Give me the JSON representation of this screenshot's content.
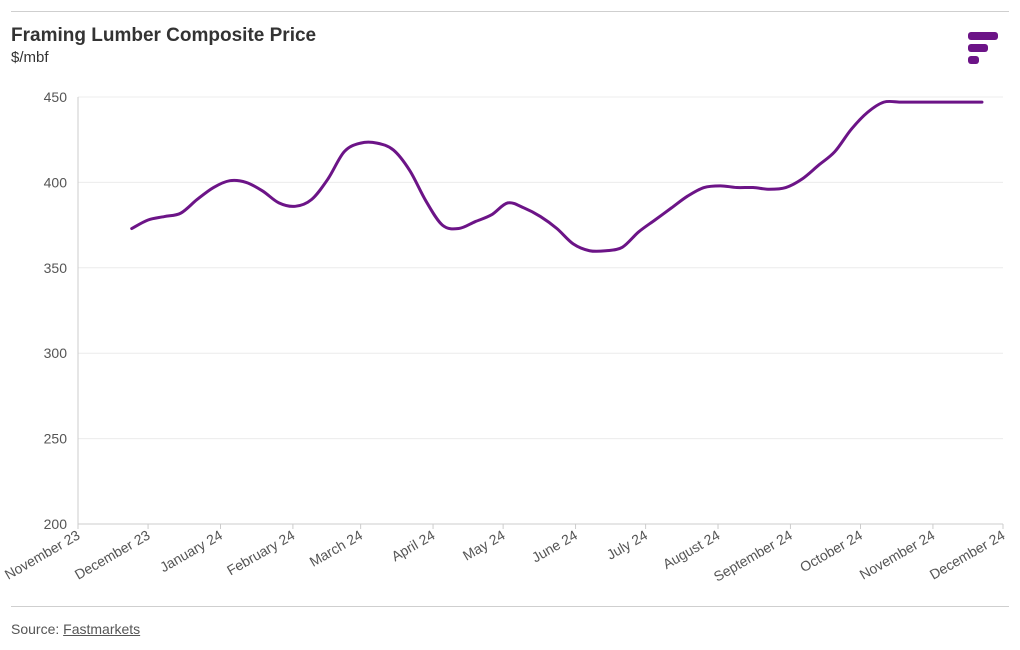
{
  "header": {
    "title": "Framing Lumber Composite Price",
    "subtitle": "$/mbf"
  },
  "logo": {
    "icon": "fastmarkets-logo-icon",
    "color": "#6c1487"
  },
  "footer": {
    "source_label": "Source: ",
    "source_link": "Fastmarkets"
  },
  "chart_data": {
    "type": "line",
    "title": "Framing Lumber Composite Price",
    "ylabel": "$/mbf",
    "xlabel": "",
    "ylim": [
      200,
      450
    ],
    "yticks": [
      200,
      250,
      300,
      350,
      400,
      450
    ],
    "xticks": [
      "November 23",
      "December 23",
      "January 24",
      "February 24",
      "March 24",
      "April 24",
      "May 24",
      "June 24",
      "July 24",
      "August 24",
      "September 24",
      "October 24",
      "November 24",
      "December 24"
    ],
    "xlim": [
      "2023-11-01",
      "2024-12-01"
    ],
    "grid": true,
    "line_color": "#6c1487",
    "series": [
      {
        "x": [
          "2023-11-24",
          "2023-12-01",
          "2023-12-08",
          "2023-12-15",
          "2023-12-22",
          "2023-12-29",
          "2024-01-05",
          "2024-01-12",
          "2024-01-19",
          "2024-01-26",
          "2024-02-02",
          "2024-02-09",
          "2024-02-16",
          "2024-02-23",
          "2024-03-01",
          "2024-03-08",
          "2024-03-15",
          "2024-03-22",
          "2024-03-29",
          "2024-04-05",
          "2024-04-12",
          "2024-04-19",
          "2024-04-26",
          "2024-05-03",
          "2024-05-10",
          "2024-05-17",
          "2024-05-24",
          "2024-05-31",
          "2024-06-07",
          "2024-06-14",
          "2024-06-21",
          "2024-06-28",
          "2024-07-05",
          "2024-07-12",
          "2024-07-19",
          "2024-07-26",
          "2024-08-02",
          "2024-08-09",
          "2024-08-16",
          "2024-08-23",
          "2024-08-30",
          "2024-09-06",
          "2024-09-13",
          "2024-09-20",
          "2024-09-27",
          "2024-10-04",
          "2024-10-11",
          "2024-10-18",
          "2024-10-25",
          "2024-11-01",
          "2024-11-08",
          "2024-11-15",
          "2024-11-22"
        ],
        "values": [
          373,
          378,
          380,
          382,
          390,
          397,
          401,
          400,
          395,
          388,
          386,
          390,
          402,
          418,
          423,
          423,
          419,
          407,
          389,
          375,
          373,
          377,
          381,
          388,
          385,
          380,
          373,
          364,
          360,
          360,
          362,
          371,
          378,
          385,
          392,
          397,
          398,
          397,
          397,
          396,
          397,
          402,
          410,
          418,
          431,
          441,
          447,
          447,
          447,
          447,
          447,
          447,
          447
        ]
      }
    ]
  }
}
